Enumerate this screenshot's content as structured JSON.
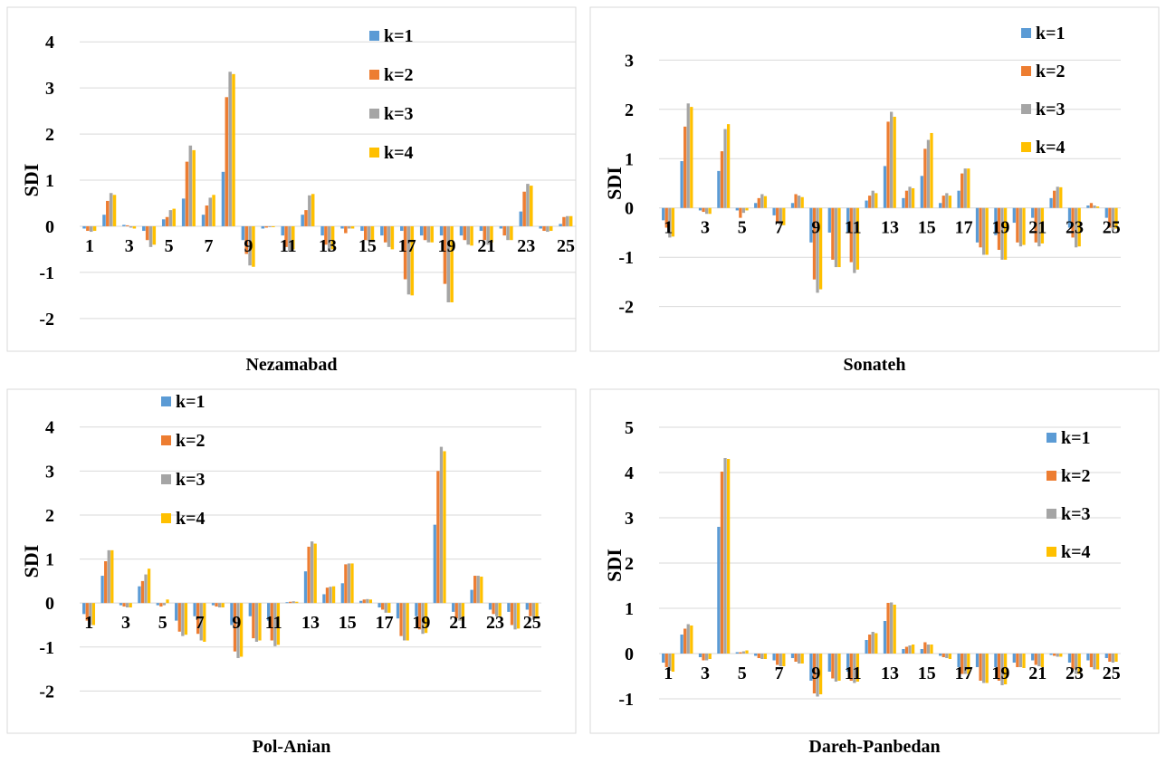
{
  "chart_data": [
    {
      "type": "bar",
      "title": "Nezamabad",
      "ylabel": "SDI",
      "categories": [
        "1",
        "2",
        "3",
        "4",
        "5",
        "6",
        "7",
        "8",
        "9",
        "10",
        "11",
        "12",
        "13",
        "14",
        "15",
        "16",
        "17",
        "18",
        "19",
        "20",
        "21",
        "22",
        "23",
        "24",
        "25"
      ],
      "tick_labels": [
        "1",
        "3",
        "5",
        "7",
        "9",
        "11",
        "13",
        "15",
        "17",
        "19",
        "21",
        "23",
        "25"
      ],
      "yticks": [
        -2,
        -1,
        0,
        1,
        2,
        3,
        4
      ],
      "ylim": [
        -2.2,
        4.2
      ],
      "series": [
        {
          "name": "k=1",
          "values": [
            -0.05,
            0.25,
            0.03,
            -0.1,
            0.15,
            0.6,
            0.25,
            1.18,
            -0.3,
            -0.05,
            -0.2,
            0.25,
            -0.2,
            -0.05,
            -0.1,
            -0.2,
            -0.1,
            -0.2,
            -0.2,
            -0.2,
            -0.1,
            -0.05,
            0.32,
            -0.05,
            0.05
          ]
        },
        {
          "name": "k=2",
          "values": [
            -0.1,
            0.55,
            0.02,
            -0.3,
            0.2,
            1.4,
            0.45,
            2.8,
            -0.6,
            -0.03,
            -0.45,
            0.35,
            -0.4,
            -0.15,
            -0.3,
            -0.35,
            -1.15,
            -0.3,
            -1.25,
            -0.3,
            -0.3,
            -0.2,
            0.75,
            -0.1,
            0.2
          ]
        },
        {
          "name": "k=3",
          "values": [
            -0.12,
            0.72,
            -0.03,
            -0.45,
            0.35,
            1.75,
            0.62,
            3.35,
            -0.85,
            -0.02,
            -0.55,
            0.67,
            -0.55,
            -0.05,
            -0.32,
            -0.45,
            -1.48,
            -0.35,
            -1.65,
            -0.4,
            -0.4,
            -0.3,
            0.92,
            -0.12,
            0.22
          ]
        },
        {
          "name": "k=4",
          "values": [
            -0.1,
            0.68,
            -0.05,
            -0.4,
            0.38,
            1.65,
            0.68,
            3.3,
            -0.88,
            -0.02,
            -0.5,
            0.7,
            -0.5,
            -0.05,
            -0.3,
            -0.5,
            -1.5,
            -0.35,
            -1.65,
            -0.42,
            -0.35,
            -0.3,
            0.88,
            -0.1,
            0.22
          ]
        }
      ],
      "colors": [
        "#5b9bd5",
        "#ed7d31",
        "#a5a5a5",
        "#ffc000"
      ],
      "grid": true,
      "legend": "top-right"
    },
    {
      "type": "bar",
      "title": "Sonateh",
      "ylabel": "SDI",
      "categories": [
        "1",
        "2",
        "3",
        "4",
        "5",
        "6",
        "7",
        "8",
        "9",
        "10",
        "11",
        "12",
        "13",
        "14",
        "15",
        "16",
        "17",
        "18",
        "19",
        "20",
        "21",
        "22",
        "23",
        "24",
        "25"
      ],
      "tick_labels": [
        "1",
        "3",
        "5",
        "7",
        "9",
        "11",
        "13",
        "15",
        "17",
        "19",
        "21",
        "23",
        "25"
      ],
      "yticks": [
        -2,
        -1,
        0,
        1,
        2,
        3
      ],
      "ylim": [
        -2.3,
        3.3
      ],
      "series": [
        {
          "name": "k=1",
          "values": [
            -0.25,
            0.95,
            -0.05,
            0.75,
            -0.05,
            0.1,
            -0.15,
            0.1,
            -0.7,
            -0.5,
            -0.5,
            0.15,
            0.85,
            0.2,
            0.65,
            0.1,
            0.35,
            -0.7,
            -0.55,
            -0.3,
            -0.2,
            0.2,
            -0.4,
            0.05,
            -0.2
          ]
        },
        {
          "name": "k=2",
          "values": [
            -0.4,
            1.65,
            -0.08,
            1.15,
            -0.2,
            0.2,
            -0.3,
            0.28,
            -1.45,
            -1.05,
            -1.1,
            0.25,
            1.75,
            0.35,
            1.2,
            0.25,
            0.7,
            -0.8,
            -0.85,
            -0.7,
            -0.7,
            0.35,
            -0.6,
            0.1,
            -0.4
          ]
        },
        {
          "name": "k=3",
          "values": [
            -0.6,
            2.12,
            -0.12,
            1.6,
            -0.1,
            0.28,
            -0.35,
            0.25,
            -1.72,
            -1.2,
            -1.32,
            0.35,
            1.95,
            0.43,
            1.38,
            0.3,
            0.8,
            -0.95,
            -1.05,
            -0.78,
            -0.78,
            0.43,
            -0.8,
            0.05,
            -0.45
          ]
        },
        {
          "name": "k=4",
          "values": [
            -0.58,
            2.05,
            -0.12,
            1.7,
            -0.05,
            0.24,
            -0.35,
            0.22,
            -1.65,
            -1.2,
            -1.25,
            0.3,
            1.85,
            0.4,
            1.52,
            0.25,
            0.8,
            -0.95,
            -1.05,
            -0.75,
            -0.72,
            0.42,
            -0.78,
            0.03,
            -0.42
          ]
        }
      ],
      "colors": [
        "#5b9bd5",
        "#ed7d31",
        "#a5a5a5",
        "#ffc000"
      ],
      "grid": true,
      "legend": "top-right"
    },
    {
      "type": "bar",
      "title": "Pol-Anian",
      "ylabel": "SDI",
      "categories": [
        "1",
        "2",
        "3",
        "4",
        "5",
        "6",
        "7",
        "8",
        "9",
        "10",
        "11",
        "12",
        "13",
        "14",
        "15",
        "16",
        "17",
        "18",
        "19",
        "20",
        "21",
        "22",
        "23",
        "24",
        "25"
      ],
      "tick_labels": [
        "1",
        "3",
        "5",
        "7",
        "9",
        "11",
        "13",
        "15",
        "17",
        "19",
        "21",
        "23",
        "25"
      ],
      "yticks": [
        -2,
        -1,
        0,
        1,
        2,
        3,
        4
      ],
      "ylim": [
        -2.3,
        4.2
      ],
      "series": [
        {
          "name": "k=1",
          "values": [
            -0.25,
            0.62,
            -0.05,
            0.38,
            -0.05,
            -0.4,
            -0.3,
            -0.05,
            -0.5,
            -0.3,
            -0.4,
            0.02,
            0.72,
            0.2,
            0.45,
            0.05,
            -0.1,
            -0.35,
            -0.3,
            1.78,
            -0.2,
            0.3,
            -0.15,
            -0.2,
            -0.15
          ]
        },
        {
          "name": "k=2",
          "values": [
            -0.4,
            0.95,
            -0.08,
            0.5,
            -0.08,
            -0.65,
            -0.7,
            -0.08,
            -1.1,
            -0.8,
            -0.85,
            0.03,
            1.28,
            0.35,
            0.88,
            0.08,
            -0.15,
            -0.75,
            -0.6,
            3.0,
            -0.35,
            0.62,
            -0.25,
            -0.5,
            -0.3
          ]
        },
        {
          "name": "k=3",
          "values": [
            -0.5,
            1.2,
            -0.1,
            0.65,
            -0.05,
            -0.75,
            -0.85,
            -0.1,
            -1.25,
            -0.88,
            -0.98,
            0.04,
            1.4,
            0.37,
            0.9,
            0.09,
            -0.22,
            -0.85,
            -0.7,
            3.55,
            -0.4,
            0.62,
            -0.3,
            -0.6,
            -0.38
          ]
        },
        {
          "name": "k=4",
          "values": [
            -0.5,
            1.2,
            -0.1,
            0.78,
            0.08,
            -0.72,
            -0.88,
            -0.1,
            -1.22,
            -0.85,
            -0.95,
            0.03,
            1.35,
            0.38,
            0.9,
            0.08,
            -0.22,
            -0.85,
            -0.68,
            3.45,
            -0.4,
            0.6,
            -0.3,
            -0.58,
            -0.35
          ]
        }
      ],
      "colors": [
        "#5b9bd5",
        "#ed7d31",
        "#a5a5a5",
        "#ffc000"
      ],
      "grid": true,
      "legend": "top-left"
    },
    {
      "type": "bar",
      "title": "Dareh-Panbedan",
      "ylabel": "SDI",
      "categories": [
        "1",
        "2",
        "3",
        "4",
        "5",
        "6",
        "7",
        "8",
        "9",
        "10",
        "11",
        "12",
        "13",
        "14",
        "15",
        "16",
        "17",
        "18",
        "19",
        "20",
        "21",
        "22",
        "23",
        "24",
        "25"
      ],
      "tick_labels": [
        "1",
        "3",
        "5",
        "7",
        "9",
        "11",
        "13",
        "15",
        "17",
        "19",
        "21",
        "23",
        "25"
      ],
      "yticks": [
        -1,
        0,
        1,
        2,
        3,
        4,
        5
      ],
      "ylim": [
        -1.3,
        5.2
      ],
      "series": [
        {
          "name": "k=1",
          "values": [
            -0.2,
            0.42,
            -0.08,
            2.8,
            0.03,
            -0.05,
            -0.15,
            -0.1,
            -0.6,
            -0.4,
            -0.4,
            0.3,
            0.72,
            0.1,
            0.1,
            -0.05,
            -0.3,
            -0.3,
            -0.3,
            -0.2,
            -0.15,
            -0.03,
            -0.2,
            -0.15,
            -0.1
          ]
        },
        {
          "name": "k=2",
          "values": [
            -0.3,
            0.55,
            -0.15,
            4.02,
            0.03,
            -0.1,
            -0.25,
            -0.18,
            -0.88,
            -0.55,
            -0.6,
            0.42,
            1.12,
            0.15,
            0.25,
            -0.08,
            -0.45,
            -0.6,
            -0.6,
            -0.3,
            -0.25,
            -0.05,
            -0.35,
            -0.3,
            -0.18
          ]
        },
        {
          "name": "k=3",
          "values": [
            -0.38,
            0.65,
            -0.15,
            4.32,
            0.05,
            -0.12,
            -0.28,
            -0.22,
            -0.95,
            -0.62,
            -0.65,
            0.48,
            1.13,
            0.18,
            0.2,
            -0.1,
            -0.45,
            -0.65,
            -0.7,
            -0.3,
            -0.28,
            -0.07,
            -0.45,
            -0.35,
            -0.2
          ]
        },
        {
          "name": "k=4",
          "values": [
            -0.4,
            0.62,
            -0.12,
            4.3,
            0.07,
            -0.12,
            -0.28,
            -0.22,
            -0.9,
            -0.6,
            -0.62,
            0.45,
            1.08,
            0.2,
            0.2,
            -0.12,
            -0.45,
            -0.65,
            -0.68,
            -0.32,
            -0.3,
            -0.07,
            -0.45,
            -0.35,
            -0.18
          ]
        }
      ],
      "colors": [
        "#5b9bd5",
        "#ed7d31",
        "#a5a5a5",
        "#ffc000"
      ],
      "grid": true,
      "legend": "right"
    }
  ]
}
